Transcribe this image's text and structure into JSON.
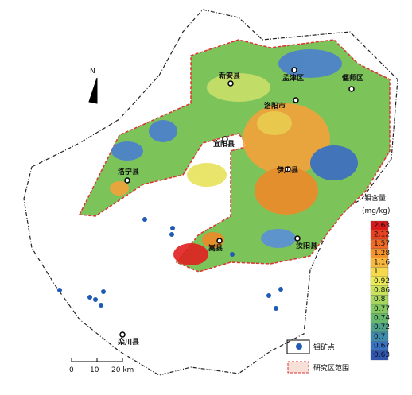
{
  "north": "N",
  "cities": [
    {
      "label": "孟津区"
    },
    {
      "label": "新安县"
    },
    {
      "label": "偃师区"
    },
    {
      "label": "洛阳市"
    },
    {
      "label": "宜阳县"
    },
    {
      "label": "洛宁县"
    },
    {
      "label": "伊川县"
    },
    {
      "label": "嵩县"
    },
    {
      "label": "汝阳县"
    },
    {
      "label": "栾川县"
    }
  ],
  "legend": {
    "title": "钼含量",
    "unit": "(mg/kg)",
    "scale_labels": [
      "2.63",
      "2.12",
      "1.57",
      "1.28",
      "1.16",
      "1",
      "0.92",
      "0.86",
      "0.8",
      "0.77",
      "0.74",
      "0.72",
      "0.7",
      "0.67",
      "0.63"
    ],
    "items": [
      "钼矿点",
      "研究区范围"
    ]
  },
  "scale_bar": {
    "labels": [
      "0",
      "10",
      "20 km"
    ]
  }
}
